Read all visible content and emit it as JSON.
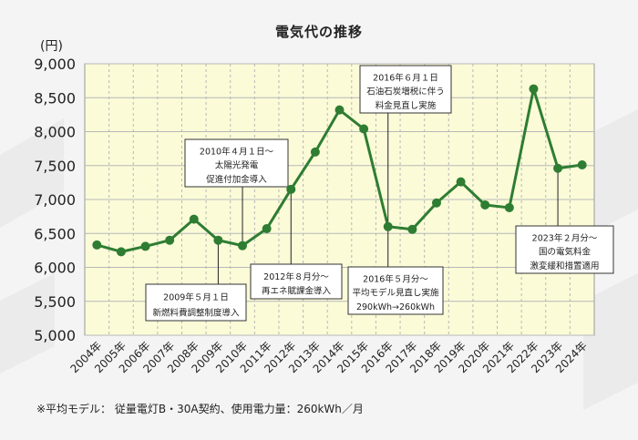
{
  "title": "電気代の推移",
  "y_unit": "(円)",
  "footnote": "※平均モデル： 従量電灯B・30A契約、使用電力量：260kWh／月",
  "colors": {
    "line": "#2e7d32",
    "plot_bg": "#fbfbd8",
    "grid": "#b8b8b8",
    "page_bg": "#f4f4f4"
  },
  "chart_data": {
    "type": "line",
    "title": "電気代の推移",
    "xlabel": "",
    "ylabel": "(円)",
    "ylim": [
      5000,
      9000
    ],
    "yticks": [
      "5,000",
      "5,500",
      "6,000",
      "6,500",
      "7,000",
      "7,500",
      "8,000",
      "8,500",
      "9,000"
    ],
    "grid": true,
    "categories": [
      "2004年",
      "2005年",
      "2006年",
      "2007年",
      "2008年",
      "2009年",
      "2010年",
      "2011年",
      "2012年",
      "2013年",
      "2014年",
      "2015年",
      "2016年",
      "2017年",
      "2018年",
      "2019年",
      "2020年",
      "2021年",
      "2022年",
      "2023年",
      "2024年"
    ],
    "values": [
      6330,
      6230,
      6310,
      6400,
      6710,
      6400,
      6320,
      6570,
      7150,
      7700,
      8320,
      8040,
      6600,
      6560,
      6950,
      7260,
      6920,
      6880,
      8630,
      7460,
      7510
    ],
    "annotations": [
      {
        "lines": [
          "2009年５月１日",
          "新燃料費調整制度導入"
        ]
      },
      {
        "lines": [
          "2010年４月１日～",
          "太陽光発電",
          "促進付加金導入"
        ]
      },
      {
        "lines": [
          "2012年８月分～",
          "再エネ賦課金導入"
        ]
      },
      {
        "lines": [
          "2016年６月１日",
          "石油石炭増税に伴う",
          "料金見直し実施"
        ]
      },
      {
        "lines": [
          "2016年５月分～",
          "平均モデル見直し実施",
          "290kWh→260kWh"
        ]
      },
      {
        "lines": [
          "2023年２月分～",
          "国の電気料金",
          "激変緩和措置適用"
        ]
      }
    ]
  }
}
